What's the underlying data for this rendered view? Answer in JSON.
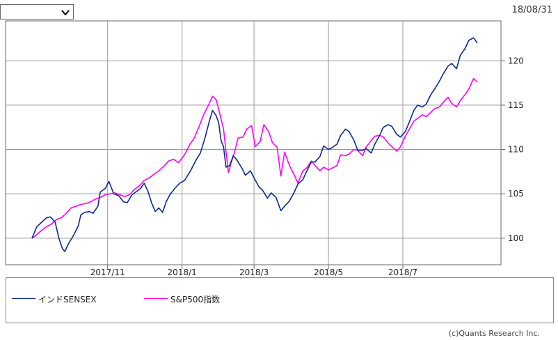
{
  "header": {
    "select_value": "",
    "date": "18/08/31"
  },
  "copyright": "(c)Quants Research Inc.",
  "colors": {
    "sensex": "#0a2a8f",
    "sp500": "#ff00ff",
    "grid": "#999999",
    "axis": "#666666"
  },
  "chart_data": {
    "type": "line",
    "title": "",
    "xlabel": "",
    "ylabel": "",
    "ylim": [
      97,
      124.5
    ],
    "xlim": [
      "2017-08-31",
      "2018-08-31"
    ],
    "y_ticks": [
      100,
      105,
      110,
      115,
      120
    ],
    "x_ticks": [
      {
        "date": "2017-11-01",
        "label": "2017/11"
      },
      {
        "date": "2018-01-01",
        "label": "2018/1"
      },
      {
        "date": "2018-03-01",
        "label": "2018/3"
      },
      {
        "date": "2018-05-01",
        "label": "2018/5"
      },
      {
        "date": "2018-07-01",
        "label": "2018/7"
      }
    ],
    "grid": true,
    "legend_placement": "bottom",
    "series": [
      {
        "name": "インドSENSEX",
        "points": [
          [
            "2017-08-31",
            100.0
          ],
          [
            "2017-09-04",
            101.3
          ],
          [
            "2017-09-08",
            101.8
          ],
          [
            "2017-09-12",
            102.3
          ],
          [
            "2017-09-15",
            102.4
          ],
          [
            "2017-09-19",
            101.8
          ],
          [
            "2017-09-22",
            100.0
          ],
          [
            "2017-09-25",
            98.8
          ],
          [
            "2017-09-27",
            98.5
          ],
          [
            "2017-09-30",
            99.4
          ],
          [
            "2017-10-04",
            100.3
          ],
          [
            "2017-10-08",
            101.4
          ],
          [
            "2017-10-10",
            102.6
          ],
          [
            "2017-10-13",
            102.9
          ],
          [
            "2017-10-17",
            103.0
          ],
          [
            "2017-10-20",
            102.8
          ],
          [
            "2017-10-24",
            103.6
          ],
          [
            "2017-10-26",
            105.2
          ],
          [
            "2017-10-30",
            105.6
          ],
          [
            "2017-11-02",
            106.4
          ],
          [
            "2017-11-06",
            105.0
          ],
          [
            "2017-11-10",
            104.8
          ],
          [
            "2017-11-14",
            104.1
          ],
          [
            "2017-11-17",
            104.0
          ],
          [
            "2017-11-21",
            104.9
          ],
          [
            "2017-11-25",
            105.3
          ],
          [
            "2017-11-28",
            105.6
          ],
          [
            "2017-12-01",
            106.2
          ],
          [
            "2017-12-04",
            105.3
          ],
          [
            "2017-12-07",
            104.0
          ],
          [
            "2017-12-10",
            103.0
          ],
          [
            "2017-12-13",
            103.4
          ],
          [
            "2017-12-16",
            102.9
          ],
          [
            "2017-12-19",
            104.1
          ],
          [
            "2017-12-22",
            104.9
          ],
          [
            "2017-12-26",
            105.6
          ],
          [
            "2017-12-30",
            106.2
          ],
          [
            "2018-01-03",
            106.5
          ],
          [
            "2018-01-08",
            107.6
          ],
          [
            "2018-01-12",
            108.7
          ],
          [
            "2018-01-16",
            109.6
          ],
          [
            "2018-01-20",
            111.4
          ],
          [
            "2018-01-23",
            113.0
          ],
          [
            "2018-01-26",
            114.4
          ],
          [
            "2018-01-29",
            113.8
          ],
          [
            "2018-01-31",
            113.0
          ],
          [
            "2018-02-02",
            111.0
          ],
          [
            "2018-02-04",
            110.3
          ],
          [
            "2018-02-06",
            108.0
          ],
          [
            "2018-02-09",
            108.2
          ],
          [
            "2018-02-12",
            109.3
          ],
          [
            "2018-02-15",
            108.8
          ],
          [
            "2018-02-19",
            107.9
          ],
          [
            "2018-02-22",
            107.1
          ],
          [
            "2018-02-26",
            107.6
          ],
          [
            "2018-03-01",
            106.8
          ],
          [
            "2018-03-05",
            105.8
          ],
          [
            "2018-03-08",
            105.4
          ],
          [
            "2018-03-12",
            104.5
          ],
          [
            "2018-03-15",
            105.1
          ],
          [
            "2018-03-19",
            104.6
          ],
          [
            "2018-03-23",
            103.1
          ],
          [
            "2018-03-26",
            103.6
          ],
          [
            "2018-03-30",
            104.2
          ],
          [
            "2018-04-03",
            105.2
          ],
          [
            "2018-04-06",
            106.1
          ],
          [
            "2018-04-10",
            106.6
          ],
          [
            "2018-04-13",
            107.5
          ],
          [
            "2018-04-17",
            108.6
          ],
          [
            "2018-04-20",
            108.6
          ],
          [
            "2018-04-24",
            109.2
          ],
          [
            "2018-04-27",
            110.4
          ],
          [
            "2018-05-01",
            110.0
          ],
          [
            "2018-05-04",
            110.2
          ],
          [
            "2018-05-08",
            110.6
          ],
          [
            "2018-05-11",
            111.6
          ],
          [
            "2018-05-15",
            112.3
          ],
          [
            "2018-05-18",
            112.0
          ],
          [
            "2018-05-22",
            111.0
          ],
          [
            "2018-05-25",
            109.9
          ],
          [
            "2018-05-29",
            109.9
          ],
          [
            "2018-06-01",
            110.1
          ],
          [
            "2018-06-05",
            109.6
          ],
          [
            "2018-06-08",
            110.6
          ],
          [
            "2018-06-12",
            111.6
          ],
          [
            "2018-06-15",
            112.5
          ],
          [
            "2018-06-19",
            112.8
          ],
          [
            "2018-06-22",
            112.6
          ],
          [
            "2018-06-26",
            111.7
          ],
          [
            "2018-06-29",
            111.4
          ],
          [
            "2018-07-03",
            112.0
          ],
          [
            "2018-07-06",
            113.0
          ],
          [
            "2018-07-10",
            114.4
          ],
          [
            "2018-07-13",
            115.0
          ],
          [
            "2018-07-17",
            114.8
          ],
          [
            "2018-07-20",
            115.1
          ],
          [
            "2018-07-24",
            116.2
          ],
          [
            "2018-07-27",
            116.8
          ],
          [
            "2018-07-31",
            117.7
          ],
          [
            "2018-08-03",
            118.5
          ],
          [
            "2018-08-07",
            119.4
          ],
          [
            "2018-08-10",
            119.7
          ],
          [
            "2018-08-14",
            119.1
          ],
          [
            "2018-08-17",
            120.6
          ],
          [
            "2018-08-21",
            121.4
          ],
          [
            "2018-08-24",
            122.3
          ],
          [
            "2018-08-28",
            122.6
          ],
          [
            "2018-08-31",
            122.0
          ]
        ]
      },
      {
        "name": "S&P500指数",
        "points": [
          [
            "2017-08-31",
            100.0
          ],
          [
            "2017-09-04",
            100.4
          ],
          [
            "2017-09-08",
            100.9
          ],
          [
            "2017-09-12",
            101.3
          ],
          [
            "2017-09-16",
            101.6
          ],
          [
            "2017-09-20",
            102.1
          ],
          [
            "2017-09-24",
            102.3
          ],
          [
            "2017-09-28",
            102.8
          ],
          [
            "2017-10-02",
            103.4
          ],
          [
            "2017-10-06",
            103.6
          ],
          [
            "2017-10-10",
            103.8
          ],
          [
            "2017-10-14",
            103.9
          ],
          [
            "2017-10-18",
            104.1
          ],
          [
            "2017-10-22",
            104.4
          ],
          [
            "2017-10-26",
            104.6
          ],
          [
            "2017-10-30",
            104.9
          ],
          [
            "2017-11-03",
            105.0
          ],
          [
            "2017-11-07",
            105.1
          ],
          [
            "2017-11-11",
            104.9
          ],
          [
            "2017-11-15",
            104.7
          ],
          [
            "2017-11-19",
            104.9
          ],
          [
            "2017-11-23",
            105.5
          ],
          [
            "2017-11-27",
            105.9
          ],
          [
            "2017-12-01",
            106.5
          ],
          [
            "2017-12-05",
            106.8
          ],
          [
            "2017-12-09",
            107.2
          ],
          [
            "2017-12-13",
            107.6
          ],
          [
            "2017-12-17",
            108.1
          ],
          [
            "2017-12-21",
            108.7
          ],
          [
            "2017-12-25",
            108.9
          ],
          [
            "2017-12-29",
            108.5
          ],
          [
            "2018-01-03",
            109.4
          ],
          [
            "2018-01-07",
            110.5
          ],
          [
            "2018-01-11",
            111.3
          ],
          [
            "2018-01-15",
            112.6
          ],
          [
            "2018-01-19",
            114.0
          ],
          [
            "2018-01-23",
            115.1
          ],
          [
            "2018-01-26",
            116.0
          ],
          [
            "2018-01-29",
            115.6
          ],
          [
            "2018-02-01",
            114.0
          ],
          [
            "2018-02-04",
            112.3
          ],
          [
            "2018-02-06",
            109.8
          ],
          [
            "2018-02-08",
            107.4
          ],
          [
            "2018-02-10",
            108.4
          ],
          [
            "2018-02-13",
            109.7
          ],
          [
            "2018-02-16",
            111.3
          ],
          [
            "2018-02-20",
            111.4
          ],
          [
            "2018-02-23",
            112.3
          ],
          [
            "2018-02-27",
            112.7
          ],
          [
            "2018-03-02",
            110.3
          ],
          [
            "2018-03-06",
            110.9
          ],
          [
            "2018-03-09",
            112.8
          ],
          [
            "2018-03-13",
            112.0
          ],
          [
            "2018-03-16",
            110.8
          ],
          [
            "2018-03-20",
            110.2
          ],
          [
            "2018-03-23",
            107.0
          ],
          [
            "2018-03-26",
            109.7
          ],
          [
            "2018-03-30",
            108.2
          ],
          [
            "2018-04-03",
            107.1
          ],
          [
            "2018-04-06",
            106.2
          ],
          [
            "2018-04-10",
            107.6
          ],
          [
            "2018-04-13",
            107.9
          ],
          [
            "2018-04-17",
            108.7
          ],
          [
            "2018-04-20",
            108.2
          ],
          [
            "2018-04-24",
            107.6
          ],
          [
            "2018-04-27",
            108.0
          ],
          [
            "2018-05-01",
            107.7
          ],
          [
            "2018-05-04",
            107.9
          ],
          [
            "2018-05-08",
            108.2
          ],
          [
            "2018-05-11",
            109.4
          ],
          [
            "2018-05-15",
            109.3
          ],
          [
            "2018-05-18",
            109.5
          ],
          [
            "2018-05-22",
            110.0
          ],
          [
            "2018-05-25",
            109.9
          ],
          [
            "2018-05-29",
            109.3
          ],
          [
            "2018-06-01",
            110.3
          ],
          [
            "2018-06-05",
            111.0
          ],
          [
            "2018-06-08",
            111.5
          ],
          [
            "2018-06-12",
            111.6
          ],
          [
            "2018-06-15",
            111.4
          ],
          [
            "2018-06-19",
            110.7
          ],
          [
            "2018-06-22",
            110.3
          ],
          [
            "2018-06-26",
            109.8
          ],
          [
            "2018-06-29",
            110.3
          ],
          [
            "2018-07-03",
            111.5
          ],
          [
            "2018-07-06",
            112.2
          ],
          [
            "2018-07-10",
            113.2
          ],
          [
            "2018-07-13",
            113.5
          ],
          [
            "2018-07-17",
            113.9
          ],
          [
            "2018-07-20",
            113.7
          ],
          [
            "2018-07-24",
            114.2
          ],
          [
            "2018-07-27",
            114.6
          ],
          [
            "2018-07-31",
            114.8
          ],
          [
            "2018-08-03",
            115.3
          ],
          [
            "2018-08-07",
            115.9
          ],
          [
            "2018-08-10",
            115.2
          ],
          [
            "2018-08-14",
            114.8
          ],
          [
            "2018-08-17",
            115.5
          ],
          [
            "2018-08-21",
            116.2
          ],
          [
            "2018-08-24",
            116.8
          ],
          [
            "2018-08-28",
            118.0
          ],
          [
            "2018-08-31",
            117.6
          ]
        ]
      }
    ]
  }
}
